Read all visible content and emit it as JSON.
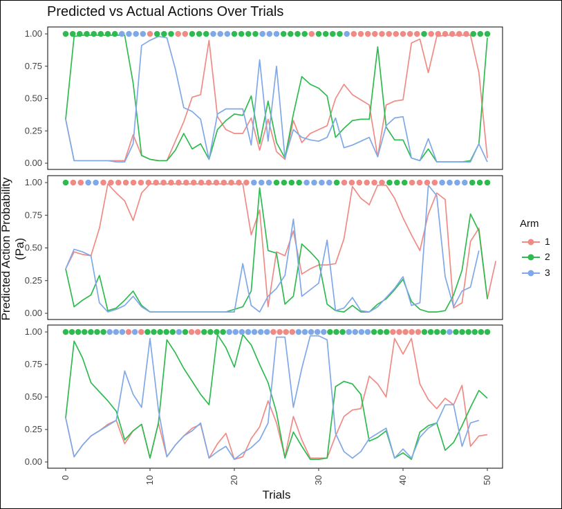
{
  "chart_data": {
    "type": "line",
    "title": "Predicted vs Actual Actions Over Trials",
    "xlabel": "Trials",
    "ylabel": "Predicted Action Probability (Pa)",
    "xlim": [
      0,
      50
    ],
    "ylim": [
      0,
      1
    ],
    "x_ticks": [
      "0",
      "10",
      "20",
      "30",
      "40",
      "50"
    ],
    "y_ticks": [
      "0.00",
      "0.25",
      "0.50",
      "0.75",
      "1.00"
    ],
    "legend": {
      "title": "Arm",
      "labels": [
        "1",
        "2",
        "3"
      ],
      "position": "right"
    },
    "colors": {
      "1": "#F08A84",
      "2": "#2EBA4F",
      "3": "#7FA8E8"
    },
    "grid": false,
    "facets": [
      {
        "actual": [
          2,
          2,
          2,
          2,
          2,
          2,
          2,
          2,
          3,
          3,
          3,
          3,
          1,
          2,
          2,
          2,
          1,
          1,
          2,
          2,
          2,
          3,
          3,
          3,
          2,
          2,
          2,
          2,
          3,
          3,
          3,
          2,
          2,
          2,
          2,
          1,
          2,
          2,
          2,
          2,
          3,
          1,
          1,
          1,
          1,
          1,
          1,
          1,
          1,
          1,
          1,
          2,
          1,
          1,
          1,
          1,
          1,
          1,
          2,
          2,
          2
        ],
        "series": [
          {
            "name": "1",
            "values": [
              0.34,
              0.02,
              0.02,
              0.02,
              0.02,
              0.02,
              0.02,
              0.02,
              0.22,
              0.06,
              0.03,
              0.02,
              0.02,
              0.17,
              0.32,
              0.51,
              0.53,
              0.95,
              0.36,
              0.26,
              0.23,
              0.23,
              0.35,
              0.1,
              0.34,
              0.09,
              0.03,
              0.33,
              0.16,
              0.23,
              0.26,
              0.29,
              0.5,
              0.61,
              0.53,
              0.49,
              0.45,
              0.05,
              0.45,
              0.48,
              0.49,
              0.93,
              0.96,
              0.7,
              0.98,
              0.99,
              0.99,
              0.99,
              0.99,
              0.7,
              0.04
            ]
          },
          {
            "name": "2",
            "values": [
              0.34,
              0.98,
              0.99,
              0.99,
              0.99,
              0.99,
              0.99,
              0.99,
              0.62,
              0.06,
              0.03,
              0.02,
              0.02,
              0.1,
              0.23,
              0.11,
              0.15,
              0.03,
              0.26,
              0.33,
              0.38,
              0.37,
              0.52,
              0.15,
              0.48,
              0.16,
              0.04,
              0.38,
              0.67,
              0.61,
              0.58,
              0.52,
              0.2,
              0.27,
              0.33,
              0.34,
              0.34,
              0.9,
              0.28,
              0.18,
              0.18,
              0.04,
              0.02,
              0.11,
              0.01,
              0.01,
              0.01,
              0.01,
              0.02,
              0.15,
              0.97
            ]
          },
          {
            "name": "3",
            "values": [
              0.34,
              0.02,
              0.02,
              0.02,
              0.02,
              0.02,
              0.01,
              0.01,
              0.15,
              0.91,
              0.95,
              0.98,
              0.97,
              0.73,
              0.43,
              0.4,
              0.34,
              0.03,
              0.38,
              0.42,
              0.42,
              0.42,
              0.14,
              0.8,
              0.17,
              0.75,
              0.04,
              0.26,
              0.2,
              0.18,
              0.17,
              0.2,
              0.35,
              0.12,
              0.14,
              0.17,
              0.2,
              0.05,
              0.29,
              0.35,
              0.36,
              0.04,
              0.02,
              0.19,
              0.01,
              0.01,
              0.01,
              0.01,
              0.01,
              0.15,
              0.01
            ]
          }
        ]
      },
      {
        "actual": [
          2,
          1,
          1,
          3,
          3,
          1,
          1,
          1,
          1,
          1,
          1,
          1,
          1,
          1,
          1,
          1,
          1,
          1,
          1,
          1,
          1,
          1,
          1,
          1,
          1,
          3,
          3,
          3,
          2,
          2,
          2,
          2,
          3,
          3,
          3,
          3,
          2,
          1,
          1,
          1,
          1,
          1,
          1,
          2,
          2,
          2,
          1,
          1,
          1,
          1,
          3,
          3,
          3,
          3,
          2,
          2,
          2
        ],
        "series": [
          {
            "name": "1",
            "values": [
              0.34,
              0.47,
              0.45,
              0.44,
              0.65,
              0.99,
              0.92,
              0.86,
              0.71,
              0.92,
              0.99,
              0.99,
              0.99,
              0.99,
              0.99,
              0.99,
              0.99,
              0.99,
              0.99,
              0.99,
              0.99,
              0.99,
              0.6,
              0.79,
              0.05,
              0.47,
              0.44,
              0.63,
              0.3,
              0.34,
              0.37,
              0.37,
              0.38,
              0.57,
              0.97,
              0.88,
              0.83,
              0.98,
              0.98,
              0.88,
              0.73,
              0.6,
              0.48,
              0.76,
              0.92,
              0.87,
              0.04,
              0.08,
              0.55,
              0.65,
              0.11,
              0.4
            ]
          },
          {
            "name": "2",
            "values": [
              0.34,
              0.05,
              0.1,
              0.14,
              0.29,
              0.02,
              0.04,
              0.1,
              0.17,
              0.06,
              0.01,
              0.01,
              0.01,
              0.01,
              0.01,
              0.01,
              0.01,
              0.01,
              0.01,
              0.01,
              0.03,
              0.05,
              0.17,
              0.96,
              0.48,
              0.46,
              0.07,
              0.13,
              0.53,
              0.47,
              0.4,
              0.07,
              0.02,
              0.01,
              0.06,
              0.01,
              0.01,
              0.07,
              0.11,
              0.18,
              0.26,
              0.09,
              0.03,
              0.01,
              0.01,
              0.02,
              0.14,
              0.33,
              0.76,
              0.63,
              0.11
            ]
          },
          {
            "name": "3",
            "values": [
              0.34,
              0.49,
              0.47,
              0.44,
              0.08,
              0.01,
              0.03,
              0.06,
              0.13,
              0.05,
              0.01,
              0.01,
              0.01,
              0.01,
              0.01,
              0.01,
              0.01,
              0.01,
              0.01,
              0.01,
              0.01,
              0.38,
              0.06,
              0.01,
              0.13,
              0.19,
              0.29,
              0.72,
              0.13,
              0.18,
              0.23,
              0.56,
              0.02,
              0.04,
              0.12,
              0.02,
              0.01,
              0.05,
              0.12,
              0.19,
              0.28,
              0.06,
              0.08,
              0.98,
              0.9,
              0.28,
              0.05,
              0.17,
              0.2,
              0.48
            ]
          }
        ]
      },
      {
        "actual": [
          2,
          2,
          2,
          2,
          2,
          2,
          2,
          3,
          3,
          3,
          1,
          3,
          1,
          2,
          2,
          2,
          2,
          2,
          3,
          2,
          1,
          1,
          2,
          2,
          2,
          2,
          3,
          3,
          3,
          3,
          3,
          3,
          3,
          1,
          1,
          1,
          1,
          3,
          3,
          3,
          3,
          3,
          2,
          2,
          2,
          3,
          3,
          3,
          3,
          2,
          2,
          2,
          1,
          1,
          1,
          1,
          1,
          2,
          2,
          2,
          2,
          3,
          2,
          2,
          2,
          2,
          2,
          2
        ],
        "series": [
          {
            "name": "1",
            "values": [
              0.34,
              0.04,
              0.13,
              0.2,
              0.24,
              0.29,
              0.32,
              0.14,
              0.24,
              0.29,
              0.03,
              0.3,
              0.04,
              0.13,
              0.2,
              0.26,
              0.29,
              0.03,
              0.14,
              0.22,
              0.02,
              0.04,
              0.18,
              0.27,
              0.47,
              0.3,
              0.04,
              0.35,
              0.17,
              0.03,
              0.03,
              0.03,
              0.2,
              0.35,
              0.4,
              0.41,
              0.66,
              0.6,
              0.5,
              0.95,
              0.83,
              0.95,
              0.6,
              0.48,
              0.41,
              0.49,
              0.44,
              0.59,
              0.12,
              0.2,
              0.21
            ]
          },
          {
            "name": "2",
            "values": [
              0.34,
              0.93,
              0.8,
              0.61,
              0.54,
              0.47,
              0.39,
              0.17,
              0.24,
              0.29,
              0.03,
              0.3,
              0.94,
              0.84,
              0.72,
              0.62,
              0.52,
              0.44,
              0.98,
              0.88,
              0.73,
              0.98,
              0.9,
              0.75,
              0.61,
              0.38,
              0.03,
              0.23,
              0.12,
              0.02,
              0.02,
              0.03,
              0.58,
              0.62,
              0.6,
              0.52,
              0.16,
              0.19,
              0.24,
              0.03,
              0.07,
              0.02,
              0.23,
              0.28,
              0.3,
              0.09,
              0.15,
              0.28,
              0.42,
              0.55,
              0.49
            ]
          },
          {
            "name": "3",
            "values": [
              0.34,
              0.04,
              0.13,
              0.2,
              0.24,
              0.28,
              0.32,
              0.7,
              0.52,
              0.42,
              0.95,
              0.4,
              0.04,
              0.13,
              0.2,
              0.24,
              0.3,
              0.03,
              0.08,
              0.12,
              0.02,
              0.07,
              0.11,
              0.17,
              0.3,
              0.96,
              0.96,
              0.42,
              0.72,
              0.97,
              0.97,
              0.94,
              0.22,
              0.08,
              0.03,
              0.08,
              0.18,
              0.22,
              0.26,
              0.03,
              0.1,
              0.03,
              0.19,
              0.26,
              0.3,
              0.44,
              0.44,
              0.12,
              0.3,
              0.32
            ]
          }
        ]
      }
    ]
  }
}
